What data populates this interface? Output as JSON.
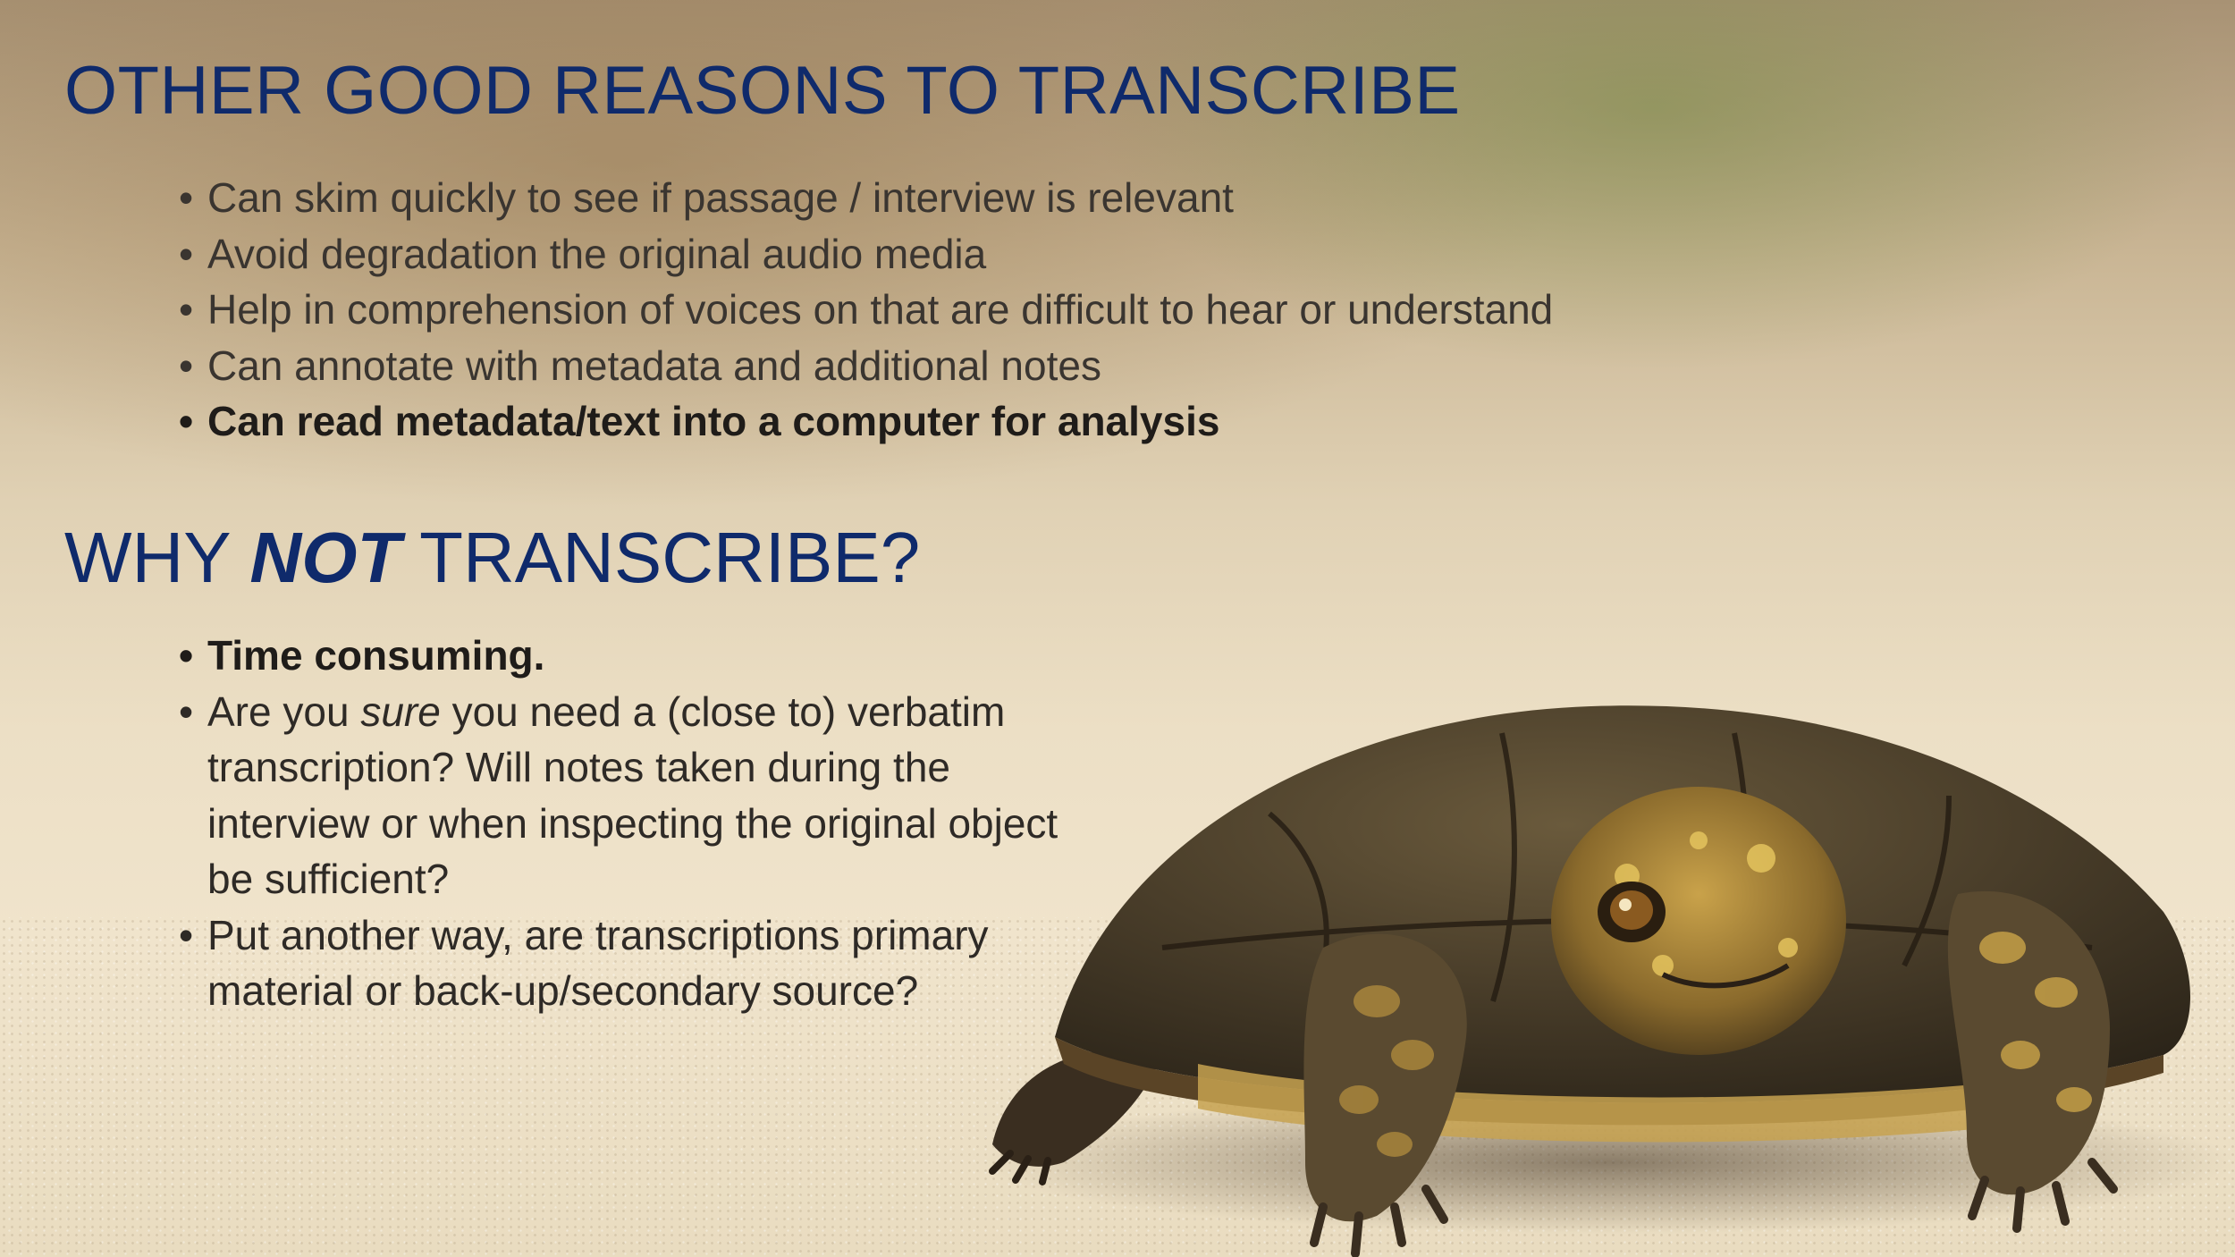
{
  "slide": {
    "background_colors": [
      "#a89274",
      "#e0d1b4",
      "#f0e4cc"
    ],
    "heading_color": "#0f2a6b"
  },
  "section1": {
    "title": "OTHER GOOD REASONS TO TRANSCRIBE",
    "bullets": [
      "Can skim quickly to see if passage / interview is relevant",
      "Avoid degradation the original audio media",
      "Help in comprehension of voices on that are difficult to hear or understand",
      "Can annotate with metadata and additional notes",
      "Can read metadata/text into a computer for analysis"
    ]
  },
  "section2": {
    "title_before": "WHY ",
    "title_emphasis": "NOT",
    "title_after": " TRANSCRIBE?",
    "bullet1": "Time consuming.",
    "bullet2_before": "Are you ",
    "bullet2_emphasis": "sure",
    "bullet2_after": " you need a (close to) verbatim transcription? Will notes taken during the interview or when inspecting the original object be sufficient?",
    "bullet3": "Put another way, are transcriptions primary material or back-up/secondary source?"
  },
  "image": {
    "subject": "turtle-photo"
  }
}
